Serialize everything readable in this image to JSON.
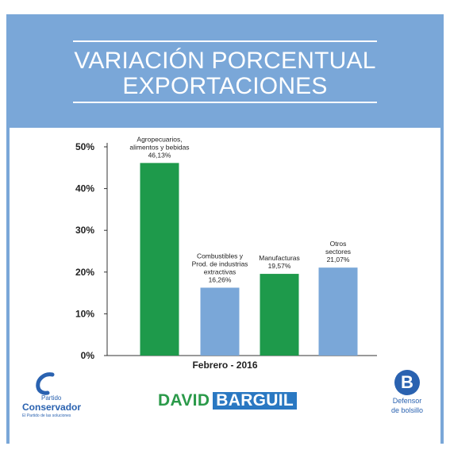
{
  "header": {
    "title_line1": "VARIACIÓN PORCENTUAL",
    "title_line2": "EXPORTACIONES"
  },
  "colors": {
    "banner": "#7aa7d8",
    "green": "#1e9a4b",
    "blue": "#7aa7d8"
  },
  "chart_data": {
    "type": "bar",
    "title": "VARIACIÓN PORCENTUAL EXPORTACIONES",
    "xlabel": "Febrero - 2016",
    "ylabel": "",
    "ylim": [
      0,
      50
    ],
    "yticks": [
      "0%",
      "10%",
      "20%",
      "30%",
      "40%",
      "50%"
    ],
    "grid": false,
    "categories": [
      [
        "Agropecuarios,",
        "alimentos y bebidas"
      ],
      [
        "Combustibles y",
        "Prod. de industrias",
        "extractivas"
      ],
      [
        "Manufacturas"
      ],
      [
        "Otros",
        "sectores"
      ]
    ],
    "values": [
      46.13,
      16.26,
      19.57,
      21.07
    ],
    "value_labels": [
      "46,13%",
      "16,26%",
      "19,57%",
      "21,07%"
    ],
    "bar_colors": [
      "#1e9a4b",
      "#7aa7d8",
      "#1e9a4b",
      "#7aa7d8"
    ]
  },
  "footer": {
    "left_logo": {
      "line1": "Partido",
      "line2": "Conservador",
      "line3": "El Partido de las soluciones"
    },
    "center_logo": {
      "first": "DAVID",
      "second": "BARGUIL"
    },
    "right_logo": {
      "badge": "B",
      "line1": "Defensor",
      "line2": "de bolsillo"
    }
  }
}
